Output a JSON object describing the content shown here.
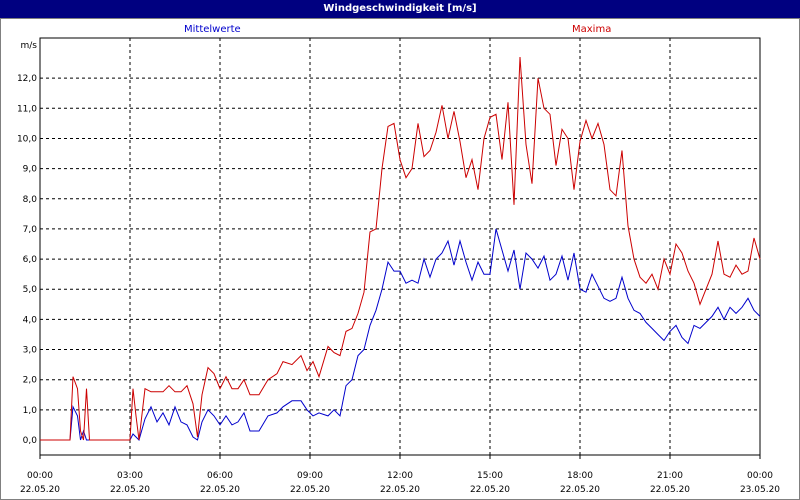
{
  "chart_data": {
    "type": "line",
    "title": "Windgeschwindigkeit [m/s]",
    "ylabel": "m/s",
    "ylim": [
      0,
      13
    ],
    "yticks": [
      "0,0",
      "1,0",
      "2,0",
      "3,0",
      "4,0",
      "5,0",
      "6,0",
      "7,0",
      "8,0",
      "9,0",
      "10,0",
      "11,0",
      "12,0"
    ],
    "xticks": [
      {
        "time": "00:00",
        "date": "22.05.20"
      },
      {
        "time": "03:00",
        "date": "22.05.20"
      },
      {
        "time": "06:00",
        "date": "22.05.20"
      },
      {
        "time": "09:00",
        "date": "22.05.20"
      },
      {
        "time": "12:00",
        "date": "22.05.20"
      },
      {
        "time": "15:00",
        "date": "22.05.20"
      },
      {
        "time": "18:00",
        "date": "22.05.20"
      },
      {
        "time": "21:00",
        "date": "22.05.20"
      },
      {
        "time": "00:00",
        "date": "23.05.20"
      }
    ],
    "grid": true,
    "series": [
      {
        "name": "Mittelwerte",
        "color": "#0000cc",
        "points": [
          [
            0,
            0
          ],
          [
            1,
            0
          ],
          [
            1.1,
            1.1
          ],
          [
            1.25,
            0.8
          ],
          [
            1.35,
            0
          ],
          [
            1.45,
            0.3
          ],
          [
            1.55,
            0
          ],
          [
            3,
            0
          ],
          [
            3.1,
            0.2
          ],
          [
            3.3,
            0
          ],
          [
            3.5,
            0.7
          ],
          [
            3.7,
            1.1
          ],
          [
            3.9,
            0.6
          ],
          [
            4.1,
            0.9
          ],
          [
            4.3,
            0.5
          ],
          [
            4.5,
            1.1
          ],
          [
            4.7,
            0.6
          ],
          [
            4.9,
            0.5
          ],
          [
            5.1,
            0.1
          ],
          [
            5.25,
            0
          ],
          [
            5.4,
            0.6
          ],
          [
            5.6,
            1.0
          ],
          [
            5.8,
            0.8
          ],
          [
            6,
            0.5
          ],
          [
            6.2,
            0.8
          ],
          [
            6.4,
            0.5
          ],
          [
            6.6,
            0.6
          ],
          [
            6.8,
            0.9
          ],
          [
            7,
            0.3
          ],
          [
            7.3,
            0.3
          ],
          [
            7.6,
            0.8
          ],
          [
            7.9,
            0.9
          ],
          [
            8.1,
            1.1
          ],
          [
            8.4,
            1.3
          ],
          [
            8.7,
            1.3
          ],
          [
            8.9,
            1.0
          ],
          [
            9.1,
            0.8
          ],
          [
            9.3,
            0.9
          ],
          [
            9.6,
            0.8
          ],
          [
            9.8,
            1.0
          ],
          [
            10,
            0.8
          ],
          [
            10.2,
            1.8
          ],
          [
            10.4,
            2.0
          ],
          [
            10.6,
            2.8
          ],
          [
            10.8,
            3.0
          ],
          [
            11,
            3.8
          ],
          [
            11.2,
            4.3
          ],
          [
            11.4,
            5.0
          ],
          [
            11.6,
            5.9
          ],
          [
            11.8,
            5.6
          ],
          [
            12,
            5.6
          ],
          [
            12.2,
            5.2
          ],
          [
            12.4,
            5.3
          ],
          [
            12.6,
            5.2
          ],
          [
            12.8,
            6.0
          ],
          [
            13,
            5.4
          ],
          [
            13.2,
            6.0
          ],
          [
            13.4,
            6.2
          ],
          [
            13.6,
            6.6
          ],
          [
            13.8,
            5.8
          ],
          [
            14,
            6.6
          ],
          [
            14.2,
            5.9
          ],
          [
            14.4,
            5.3
          ],
          [
            14.6,
            5.9
          ],
          [
            14.8,
            5.5
          ],
          [
            15,
            5.5
          ],
          [
            15.2,
            7.0
          ],
          [
            15.4,
            6.3
          ],
          [
            15.6,
            5.6
          ],
          [
            15.8,
            6.3
          ],
          [
            16,
            5.0
          ],
          [
            16.2,
            6.2
          ],
          [
            16.4,
            6.0
          ],
          [
            16.6,
            5.7
          ],
          [
            16.8,
            6.1
          ],
          [
            17,
            5.3
          ],
          [
            17.2,
            5.5
          ],
          [
            17.4,
            6.1
          ],
          [
            17.6,
            5.3
          ],
          [
            17.8,
            6.2
          ],
          [
            18,
            5.0
          ],
          [
            18.2,
            4.9
          ],
          [
            18.4,
            5.5
          ],
          [
            18.6,
            5.1
          ],
          [
            18.8,
            4.7
          ],
          [
            19,
            4.6
          ],
          [
            19.2,
            4.7
          ],
          [
            19.4,
            5.4
          ],
          [
            19.6,
            4.7
          ],
          [
            19.8,
            4.3
          ],
          [
            20,
            4.2
          ],
          [
            20.2,
            3.9
          ],
          [
            20.4,
            3.7
          ],
          [
            20.6,
            3.5
          ],
          [
            20.8,
            3.3
          ],
          [
            21,
            3.6
          ],
          [
            21.2,
            3.8
          ],
          [
            21.4,
            3.4
          ],
          [
            21.6,
            3.2
          ],
          [
            21.8,
            3.8
          ],
          [
            22,
            3.7
          ],
          [
            22.2,
            3.9
          ],
          [
            22.4,
            4.1
          ],
          [
            22.6,
            4.4
          ],
          [
            22.8,
            4.0
          ],
          [
            23,
            4.4
          ],
          [
            23.2,
            4.2
          ],
          [
            23.4,
            4.4
          ],
          [
            23.6,
            4.7
          ],
          [
            23.8,
            4.3
          ],
          [
            24,
            4.1
          ]
        ]
      },
      {
        "name": "Maxima",
        "color": "#cc0000",
        "points": [
          [
            0,
            0
          ],
          [
            1,
            0
          ],
          [
            1.1,
            2.1
          ],
          [
            1.25,
            1.7
          ],
          [
            1.35,
            0.3
          ],
          [
            1.45,
            0
          ],
          [
            1.55,
            1.7
          ],
          [
            1.65,
            0
          ],
          [
            3,
            0
          ],
          [
            3.1,
            1.7
          ],
          [
            3.2,
            0.8
          ],
          [
            3.3,
            0
          ],
          [
            3.5,
            1.7
          ],
          [
            3.7,
            1.6
          ],
          [
            3.9,
            1.6
          ],
          [
            4.1,
            1.6
          ],
          [
            4.3,
            1.8
          ],
          [
            4.5,
            1.6
          ],
          [
            4.7,
            1.6
          ],
          [
            4.9,
            1.8
          ],
          [
            5.1,
            1.2
          ],
          [
            5.25,
            0.1
          ],
          [
            5.4,
            1.5
          ],
          [
            5.6,
            2.4
          ],
          [
            5.8,
            2.2
          ],
          [
            6,
            1.7
          ],
          [
            6.2,
            2.1
          ],
          [
            6.4,
            1.7
          ],
          [
            6.6,
            1.7
          ],
          [
            6.8,
            2.0
          ],
          [
            7,
            1.5
          ],
          [
            7.3,
            1.5
          ],
          [
            7.6,
            2.0
          ],
          [
            7.9,
            2.2
          ],
          [
            8.1,
            2.6
          ],
          [
            8.4,
            2.5
          ],
          [
            8.7,
            2.8
          ],
          [
            8.9,
            2.3
          ],
          [
            9.1,
            2.6
          ],
          [
            9.3,
            2.1
          ],
          [
            9.6,
            3.1
          ],
          [
            9.8,
            2.9
          ],
          [
            10,
            2.8
          ],
          [
            10.2,
            3.6
          ],
          [
            10.4,
            3.7
          ],
          [
            10.6,
            4.2
          ],
          [
            10.8,
            4.9
          ],
          [
            11,
            6.9
          ],
          [
            11.2,
            7.0
          ],
          [
            11.4,
            9.0
          ],
          [
            11.6,
            10.4
          ],
          [
            11.8,
            10.5
          ],
          [
            12,
            9.3
          ],
          [
            12.2,
            8.7
          ],
          [
            12.4,
            9.0
          ],
          [
            12.6,
            10.5
          ],
          [
            12.8,
            9.4
          ],
          [
            13,
            9.6
          ],
          [
            13.2,
            10.2
          ],
          [
            13.4,
            11.1
          ],
          [
            13.6,
            10.0
          ],
          [
            13.8,
            10.9
          ],
          [
            14,
            9.9
          ],
          [
            14.2,
            8.7
          ],
          [
            14.4,
            9.3
          ],
          [
            14.6,
            8.3
          ],
          [
            14.8,
            10.0
          ],
          [
            15,
            10.7
          ],
          [
            15.2,
            10.8
          ],
          [
            15.4,
            9.3
          ],
          [
            15.6,
            11.2
          ],
          [
            15.8,
            7.8
          ],
          [
            16,
            12.7
          ],
          [
            16.2,
            9.8
          ],
          [
            16.4,
            8.5
          ],
          [
            16.6,
            12.0
          ],
          [
            16.8,
            11.0
          ],
          [
            17,
            10.8
          ],
          [
            17.2,
            9.1
          ],
          [
            17.4,
            10.3
          ],
          [
            17.6,
            10.0
          ],
          [
            17.8,
            8.3
          ],
          [
            18,
            9.9
          ],
          [
            18.2,
            10.6
          ],
          [
            18.4,
            10.0
          ],
          [
            18.6,
            10.5
          ],
          [
            18.8,
            9.8
          ],
          [
            19,
            8.3
          ],
          [
            19.2,
            8.1
          ],
          [
            19.4,
            9.6
          ],
          [
            19.6,
            7.1
          ],
          [
            19.8,
            6.0
          ],
          [
            20,
            5.4
          ],
          [
            20.2,
            5.2
          ],
          [
            20.4,
            5.5
          ],
          [
            20.6,
            5.0
          ],
          [
            20.8,
            6.0
          ],
          [
            21,
            5.5
          ],
          [
            21.2,
            6.5
          ],
          [
            21.4,
            6.2
          ],
          [
            21.6,
            5.6
          ],
          [
            21.8,
            5.2
          ],
          [
            22,
            4.5
          ],
          [
            22.2,
            5.0
          ],
          [
            22.4,
            5.5
          ],
          [
            22.6,
            6.6
          ],
          [
            22.8,
            5.5
          ],
          [
            23,
            5.4
          ],
          [
            23.2,
            5.8
          ],
          [
            23.4,
            5.5
          ],
          [
            23.6,
            5.6
          ],
          [
            23.8,
            6.7
          ],
          [
            24,
            6.0
          ]
        ]
      }
    ]
  }
}
